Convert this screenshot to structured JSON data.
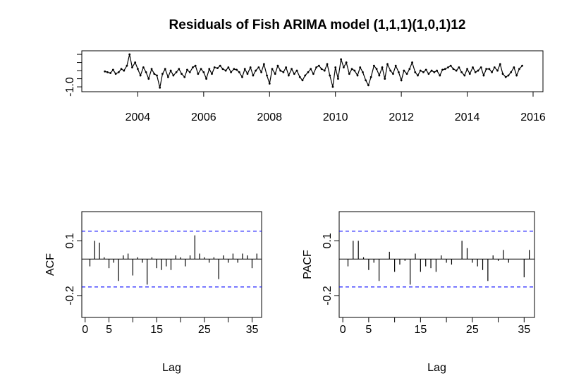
{
  "chart_data": [
    {
      "type": "line",
      "title": "Residuals of Fish ARIMA model (1,1,1)(1,0,1)12",
      "color": "#000000",
      "x": [
        2003,
        2003.08,
        2003.17,
        2003.25,
        2003.33,
        2003.42,
        2003.5,
        2003.58,
        2003.67,
        2003.75,
        2003.83,
        2003.92,
        2004,
        2004.08,
        2004.17,
        2004.25,
        2004.33,
        2004.42,
        2004.5,
        2004.58,
        2004.67,
        2004.75,
        2004.83,
        2004.92,
        2005,
        2005.08,
        2005.17,
        2005.25,
        2005.33,
        2005.42,
        2005.5,
        2005.58,
        2005.67,
        2005.75,
        2005.83,
        2005.92,
        2006,
        2006.08,
        2006.17,
        2006.25,
        2006.33,
        2006.42,
        2006.5,
        2006.58,
        2006.67,
        2006.75,
        2006.83,
        2006.92,
        2007,
        2007.08,
        2007.17,
        2007.25,
        2007.33,
        2007.42,
        2007.5,
        2007.58,
        2007.67,
        2007.75,
        2007.83,
        2007.92,
        2008,
        2008.08,
        2008.17,
        2008.25,
        2008.33,
        2008.42,
        2008.5,
        2008.58,
        2008.67,
        2008.75,
        2008.83,
        2008.92,
        2009,
        2009.08,
        2009.17,
        2009.25,
        2009.33,
        2009.42,
        2009.5,
        2009.58,
        2009.67,
        2009.75,
        2009.83,
        2009.92,
        2010,
        2010.08,
        2010.17,
        2010.25,
        2010.33,
        2010.42,
        2010.5,
        2010.58,
        2010.67,
        2010.75,
        2010.83,
        2010.92,
        2011,
        2011.08,
        2011.17,
        2011.25,
        2011.33,
        2011.42,
        2011.5,
        2011.58,
        2011.67,
        2011.75,
        2011.83,
        2011.92,
        2012,
        2012.08,
        2012.17,
        2012.25,
        2012.33,
        2012.42,
        2012.5,
        2012.58,
        2012.67,
        2012.75,
        2012.83,
        2012.92,
        2013,
        2013.08,
        2013.17,
        2013.25,
        2013.33,
        2013.42,
        2013.5,
        2013.58,
        2013.67,
        2013.75,
        2013.83,
        2013.92,
        2014,
        2014.08,
        2014.17,
        2014.25,
        2014.33,
        2014.42,
        2014.5,
        2014.58,
        2014.67,
        2014.75,
        2014.83,
        2014.92,
        2015,
        2015.08,
        2015.17,
        2015.25,
        2015.33,
        2015.42,
        2015.5,
        2015.58,
        2015.67
      ],
      "values": [
        -0.05,
        -0.1,
        -0.15,
        0.05,
        -0.2,
        -0.1,
        0.1,
        0,
        0.3,
        1,
        0.2,
        0.5,
        0.1,
        -0.3,
        0.2,
        -0.1,
        -0.5,
        0.1,
        -0.2,
        -0.3,
        -1.05,
        -0.2,
        0.1,
        -0.4,
        0,
        -0.3,
        -0.1,
        0.1,
        -0.2,
        -0.4,
        0.05,
        -0.1,
        0.2,
        0.3,
        -0.2,
        0.1,
        -0.1,
        -0.5,
        0.1,
        -0.2,
        0.2,
        0.15,
        0.3,
        0.1,
        0,
        0.2,
        -0.1,
        0.1,
        0.05,
        -0.1,
        -0.4,
        0.1,
        -0.2,
        0.2,
        -0.3,
        0,
        0.2,
        -0.1,
        0.4,
        -0.3,
        -0.8,
        0.1,
        -0.2,
        0.3,
        0,
        -0.1,
        0.2,
        -0.3,
        0.1,
        -0.2,
        0,
        -0.4,
        -0.6,
        -0.3,
        -0.1,
        0.1,
        -0.2,
        0.2,
        0.3,
        0.1,
        0,
        0.4,
        -0.3,
        -1,
        0.2,
        -0.5,
        0.7,
        0.2,
        0.5,
        -0.2,
        0.1,
        0,
        -0.3,
        0.2,
        -0.1,
        -0.6,
        -0.9,
        -0.4,
        0.3,
        0.1,
        -0.3,
        0.2,
        -0.5,
        0.4,
        0,
        -0.2,
        0.3,
        -0.1,
        -0.6,
        0,
        -0.2,
        0.1,
        0.5,
        -0.1,
        -0.3,
        0,
        -0.1,
        0.05,
        -0.2,
        0,
        -0.1,
        0,
        -0.3,
        0.05,
        0.1,
        0.2,
        0.3,
        0.1,
        0,
        0.2,
        -0.1,
        -0.3,
        0.1,
        -0.2,
        0.2,
        -0.1,
        0,
        0.2,
        -0.3,
        0.1,
        0.1,
        -0.1,
        0.2,
        0,
        0.4,
        -0.2,
        -0.4,
        -0.3,
        -0.1,
        0.2,
        -0.3,
        0.1,
        0.3
      ],
      "xlim": [
        2002.3,
        2016.3
      ],
      "xticks": [
        2004,
        2006,
        2008,
        2010,
        2012,
        2014,
        2016
      ],
      "ylim": [
        -1.3,
        1.22
      ],
      "yticks": [
        {
          "value": -1,
          "label": "-1.0"
        },
        {
          "value": -0.5,
          "label": null
        },
        {
          "value": 0,
          "label": null
        },
        {
          "value": 0.5,
          "label": null
        },
        {
          "value": 1,
          "label": null
        }
      ]
    },
    {
      "type": "bar",
      "ylabel": "ACF",
      "xlabel": "Lag",
      "color": "#000000",
      "ci_color": "#0000ff",
      "x": [
        1,
        2,
        3,
        4,
        5,
        6,
        7,
        8,
        9,
        10,
        11,
        12,
        13,
        14,
        15,
        16,
        17,
        18,
        19,
        20,
        21,
        22,
        23,
        24,
        25,
        26,
        27,
        28,
        29,
        30,
        31,
        32,
        33,
        34,
        35,
        36
      ],
      "values": [
        -0.04,
        0.1,
        0.09,
        0.01,
        -0.05,
        -0.02,
        -0.12,
        0.02,
        0.03,
        -0.09,
        0.01,
        -0.02,
        -0.14,
        0.01,
        -0.05,
        -0.06,
        -0.04,
        -0.06,
        0.02,
        0.01,
        -0.04,
        0.02,
        0.13,
        0.03,
        0.01,
        -0.02,
        0.01,
        -0.11,
        0.02,
        -0.02,
        0.03,
        -0.02,
        0.03,
        0.02,
        -0.05,
        0.03
      ],
      "ci_lines": [
        0.153,
        -0.153
      ],
      "xlim": [
        -0.7,
        37
      ],
      "xticks": [
        0,
        5,
        {
          "value": 10,
          "label": null
        },
        15,
        {
          "value": 20,
          "label": null
        },
        25,
        {
          "value": 30,
          "label": null
        },
        35
      ],
      "ylim": [
        -0.32,
        0.26
      ],
      "yticks": [
        {
          "value": -0.2,
          "label": "-0.2"
        },
        {
          "value": 0.1,
          "label": "0.1"
        }
      ]
    },
    {
      "type": "bar",
      "ylabel": "PACF",
      "xlabel": "Lag",
      "color": "#000000",
      "ci_color": "#0000ff",
      "x": [
        1,
        2,
        3,
        4,
        5,
        6,
        7,
        8,
        9,
        10,
        11,
        12,
        13,
        14,
        15,
        16,
        17,
        18,
        19,
        20,
        21,
        22,
        23,
        24,
        25,
        26,
        27,
        28,
        29,
        30,
        31,
        32,
        33,
        34,
        35,
        36
      ],
      "values": [
        -0.04,
        0.1,
        0.1,
        0.01,
        -0.06,
        -0.02,
        -0.12,
        0,
        0.04,
        -0.07,
        -0.03,
        -0.01,
        -0.14,
        0.03,
        -0.07,
        -0.04,
        -0.05,
        -0.07,
        0.02,
        -0.02,
        -0.03,
        0,
        0.1,
        0.06,
        -0.02,
        -0.04,
        -0.06,
        -0.12,
        0.02,
        -0.01,
        0.05,
        -0.02,
        0,
        0,
        -0.1,
        0.05
      ],
      "ci_lines": [
        0.153,
        -0.153
      ],
      "xlim": [
        -0.7,
        37
      ],
      "xticks": [
        0,
        5,
        {
          "value": 10,
          "label": null
        },
        15,
        {
          "value": 20,
          "label": null
        },
        25,
        {
          "value": 30,
          "label": null
        },
        35
      ],
      "ylim": [
        -0.32,
        0.26
      ],
      "yticks": [
        {
          "value": -0.2,
          "label": "-0.2"
        },
        {
          "value": 0.1,
          "label": "0.1"
        }
      ]
    }
  ]
}
